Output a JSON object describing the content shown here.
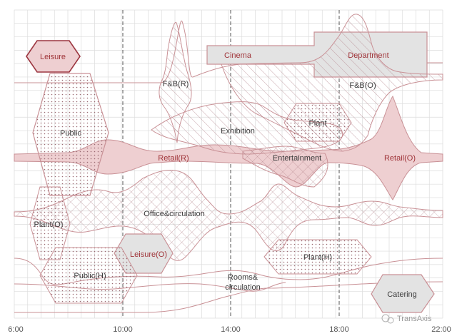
{
  "colors": {
    "grid": "#dcdcdc",
    "divider": "#555555",
    "outline": "#c99196",
    "outline_dark": "#9c3640",
    "fill_pink": "#eecfd1",
    "fill_grey": "#e3e3e3",
    "label": "#3b3b3b",
    "label_red": "#a0353a"
  },
  "axis": {
    "ticks": [
      "6:00",
      "10:00",
      "14:00",
      "18:00",
      "22:00"
    ]
  },
  "zones": {
    "leisure": "Leisure",
    "cinema": "Cinema",
    "department": "Department",
    "fb_r": "F&B(R)",
    "fb_o": "F&B(O)",
    "public": "Public",
    "exhibition": "Exhibition",
    "plant": "Plant",
    "retail_r": "Retail(R)",
    "entertainment": "Entertainment",
    "retail_o": "Retail(O)",
    "office": "Office&circulation",
    "plant_o": "Plant(O)",
    "leisure_o": "Leisure(O)",
    "plant_h": "Plant(H)",
    "public_h": "Public(H)",
    "rooms_1": "Rooms&",
    "rooms_2": "circulation",
    "catering": "Catering"
  },
  "watermark": "TransAxis"
}
